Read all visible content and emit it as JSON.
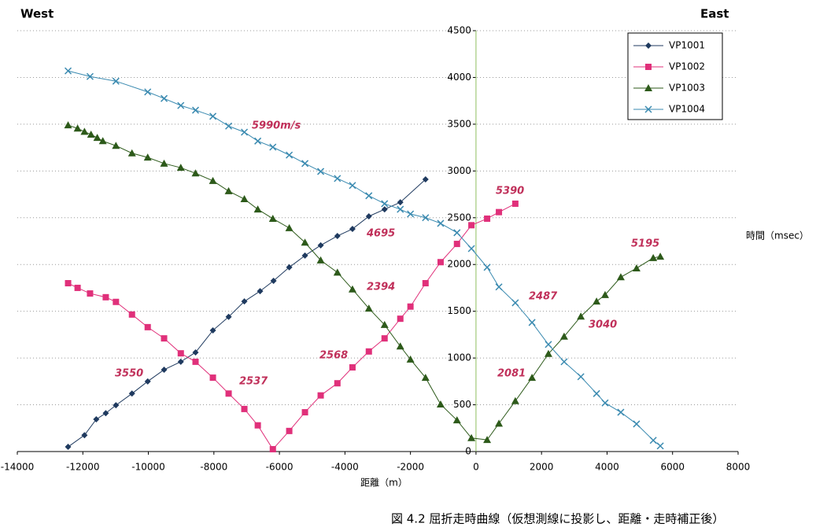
{
  "chart_data": {
    "type": "line",
    "labels": {
      "west": "West",
      "east": "East",
      "y_axis": "時間（msec）",
      "x_axis": "距離（m）",
      "caption": "図 4.2 屈折走時曲線（仮想測線に投影し、距離・走時補正後）"
    },
    "annotations": [
      "5990m/s",
      "5390",
      "4695",
      "5195",
      "2394",
      "2487",
      "3040",
      "3550",
      "2537",
      "2568",
      "2081"
    ],
    "xlim": [
      -14000,
      8000
    ],
    "xticks": [
      -14000,
      -12000,
      -10000,
      -8000,
      -6000,
      -4000,
      -2000,
      0,
      2000,
      4000,
      6000,
      8000
    ],
    "ylim": [
      0,
      4500
    ],
    "yticks": [
      0,
      500,
      1000,
      1500,
      2000,
      2500,
      3000,
      3500,
      4000,
      4500
    ],
    "grid": true,
    "legend": "upper right",
    "series": [
      {
        "name": "VP1001",
        "color": "#1f3a5f",
        "marker": "diamond",
        "x": [
          -12450,
          -11950,
          -11590,
          -11300,
          -10990,
          -10500,
          -10020,
          -9520,
          -9010,
          -8560,
          -8030,
          -7550,
          -7070,
          -6590,
          -6180,
          -5700,
          -5220,
          -4740,
          -4230,
          -3770,
          -3270,
          -2790,
          -2310,
          -1540
        ],
        "values": [
          50,
          175,
          345,
          410,
          495,
          620,
          750,
          875,
          960,
          1060,
          1295,
          1440,
          1605,
          1715,
          1825,
          1970,
          2095,
          2205,
          2305,
          2380,
          2515,
          2590,
          2665,
          2910
        ]
      },
      {
        "name": "VP1002",
        "color": "#e0307a",
        "marker": "square",
        "x": [
          -12450,
          -12160,
          -11780,
          -11300,
          -10990,
          -10500,
          -10020,
          -9520,
          -9010,
          -8560,
          -8030,
          -7550,
          -7070,
          -6660,
          -6200,
          -5700,
          -5220,
          -4740,
          -4230,
          -3770,
          -3270,
          -2790,
          -2310,
          -2000,
          -1540,
          -1080,
          -580,
          -140,
          340,
          700,
          1200
        ],
        "values": [
          1800,
          1750,
          1690,
          1650,
          1600,
          1465,
          1330,
          1210,
          1050,
          960,
          790,
          620,
          455,
          280,
          25,
          220,
          420,
          600,
          730,
          900,
          1070,
          1210,
          1420,
          1550,
          1800,
          2025,
          2220,
          2420,
          2490,
          2560,
          2650
        ]
      },
      {
        "name": "VP1003",
        "color": "#2d5a1a",
        "marker": "triangle",
        "x": [
          -12450,
          -12160,
          -11950,
          -11750,
          -11560,
          -11390,
          -10990,
          -10500,
          -10020,
          -9520,
          -9010,
          -8560,
          -8030,
          -7550,
          -7070,
          -6660,
          -6200,
          -5700,
          -5220,
          -4740,
          -4230,
          -3770,
          -3270,
          -2790,
          -2310,
          -2000,
          -1540,
          -1080,
          -580,
          -140,
          340,
          700,
          1200,
          1710,
          2210,
          2690,
          3200,
          3680,
          3940,
          4420,
          4900,
          5410,
          5625
        ],
        "values": [
          3490,
          3455,
          3420,
          3390,
          3355,
          3320,
          3270,
          3190,
          3145,
          3080,
          3035,
          2975,
          2895,
          2785,
          2700,
          2590,
          2490,
          2390,
          2235,
          2045,
          1915,
          1735,
          1530,
          1355,
          1125,
          985,
          790,
          505,
          335,
          145,
          125,
          300,
          540,
          790,
          1045,
          1230,
          1445,
          1605,
          1675,
          1865,
          1960,
          2070,
          2085
        ]
      },
      {
        "name": "VP1004",
        "color": "#3a8ab0",
        "marker": "x",
        "x": [
          -12450,
          -11780,
          -10990,
          -10020,
          -9520,
          -9010,
          -8560,
          -8030,
          -7550,
          -7070,
          -6660,
          -6200,
          -5700,
          -5220,
          -4740,
          -4230,
          -3770,
          -3270,
          -2790,
          -2310,
          -2000,
          -1540,
          -1080,
          -580,
          -140,
          340,
          700,
          1200,
          1710,
          2210,
          2690,
          3200,
          3680,
          3940,
          4420,
          4900,
          5410,
          5625
        ],
        "values": [
          4070,
          4010,
          3960,
          3845,
          3775,
          3700,
          3650,
          3585,
          3480,
          3415,
          3320,
          3255,
          3170,
          3080,
          2995,
          2920,
          2845,
          2735,
          2650,
          2590,
          2540,
          2500,
          2440,
          2340,
          2170,
          1970,
          1760,
          1590,
          1380,
          1145,
          960,
          800,
          620,
          520,
          420,
          295,
          120,
          60
        ]
      }
    ]
  }
}
